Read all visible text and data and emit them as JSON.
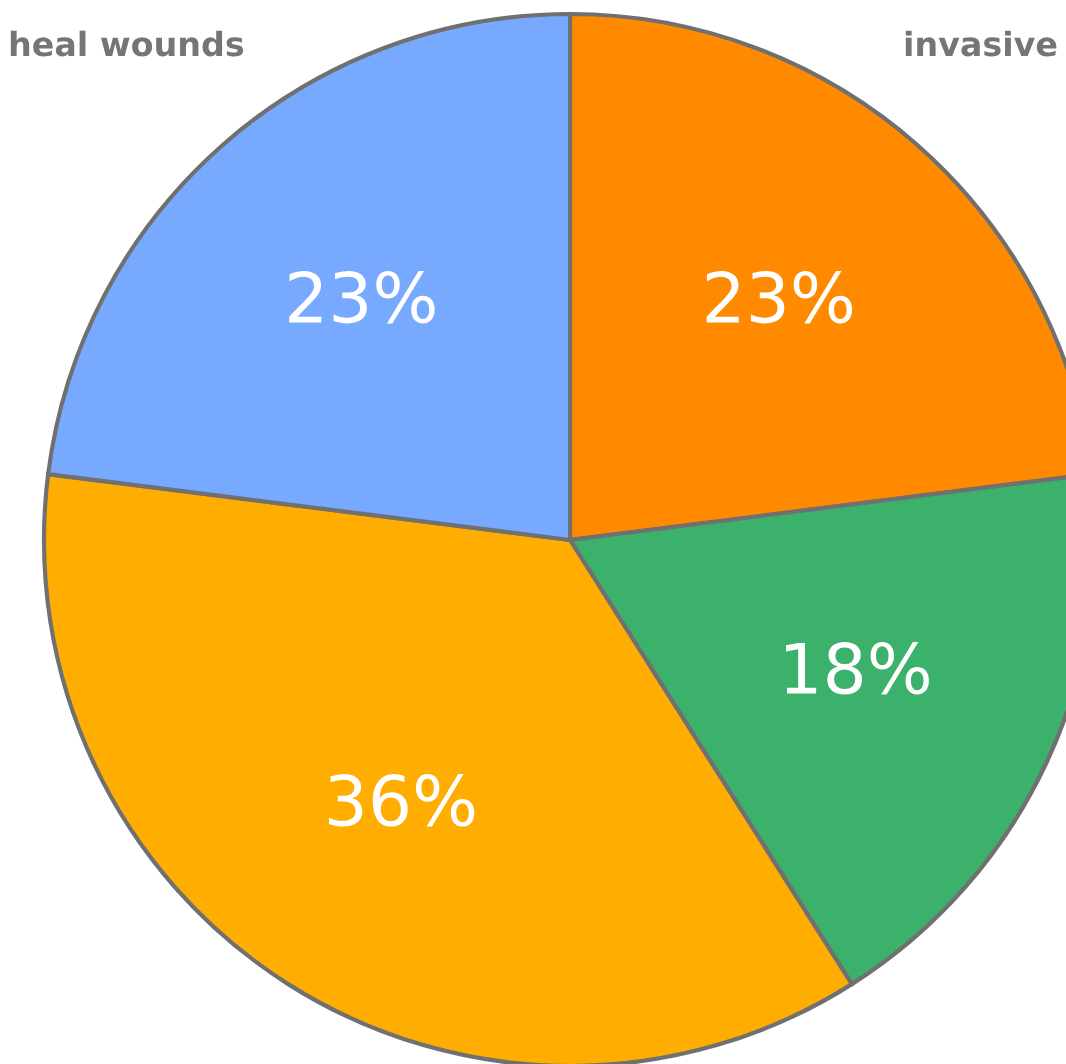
{
  "chart_data": {
    "type": "pie",
    "categories": [
      "invasive",
      null,
      null,
      "heal wounds"
    ],
    "values": [
      23,
      18,
      36,
      23
    ],
    "colors": [
      "#ff8a00",
      "#3bb16b",
      "#ffad00",
      "#77aaff"
    ],
    "value_labels": [
      "23%",
      "18%",
      "36%",
      "23%"
    ]
  }
}
